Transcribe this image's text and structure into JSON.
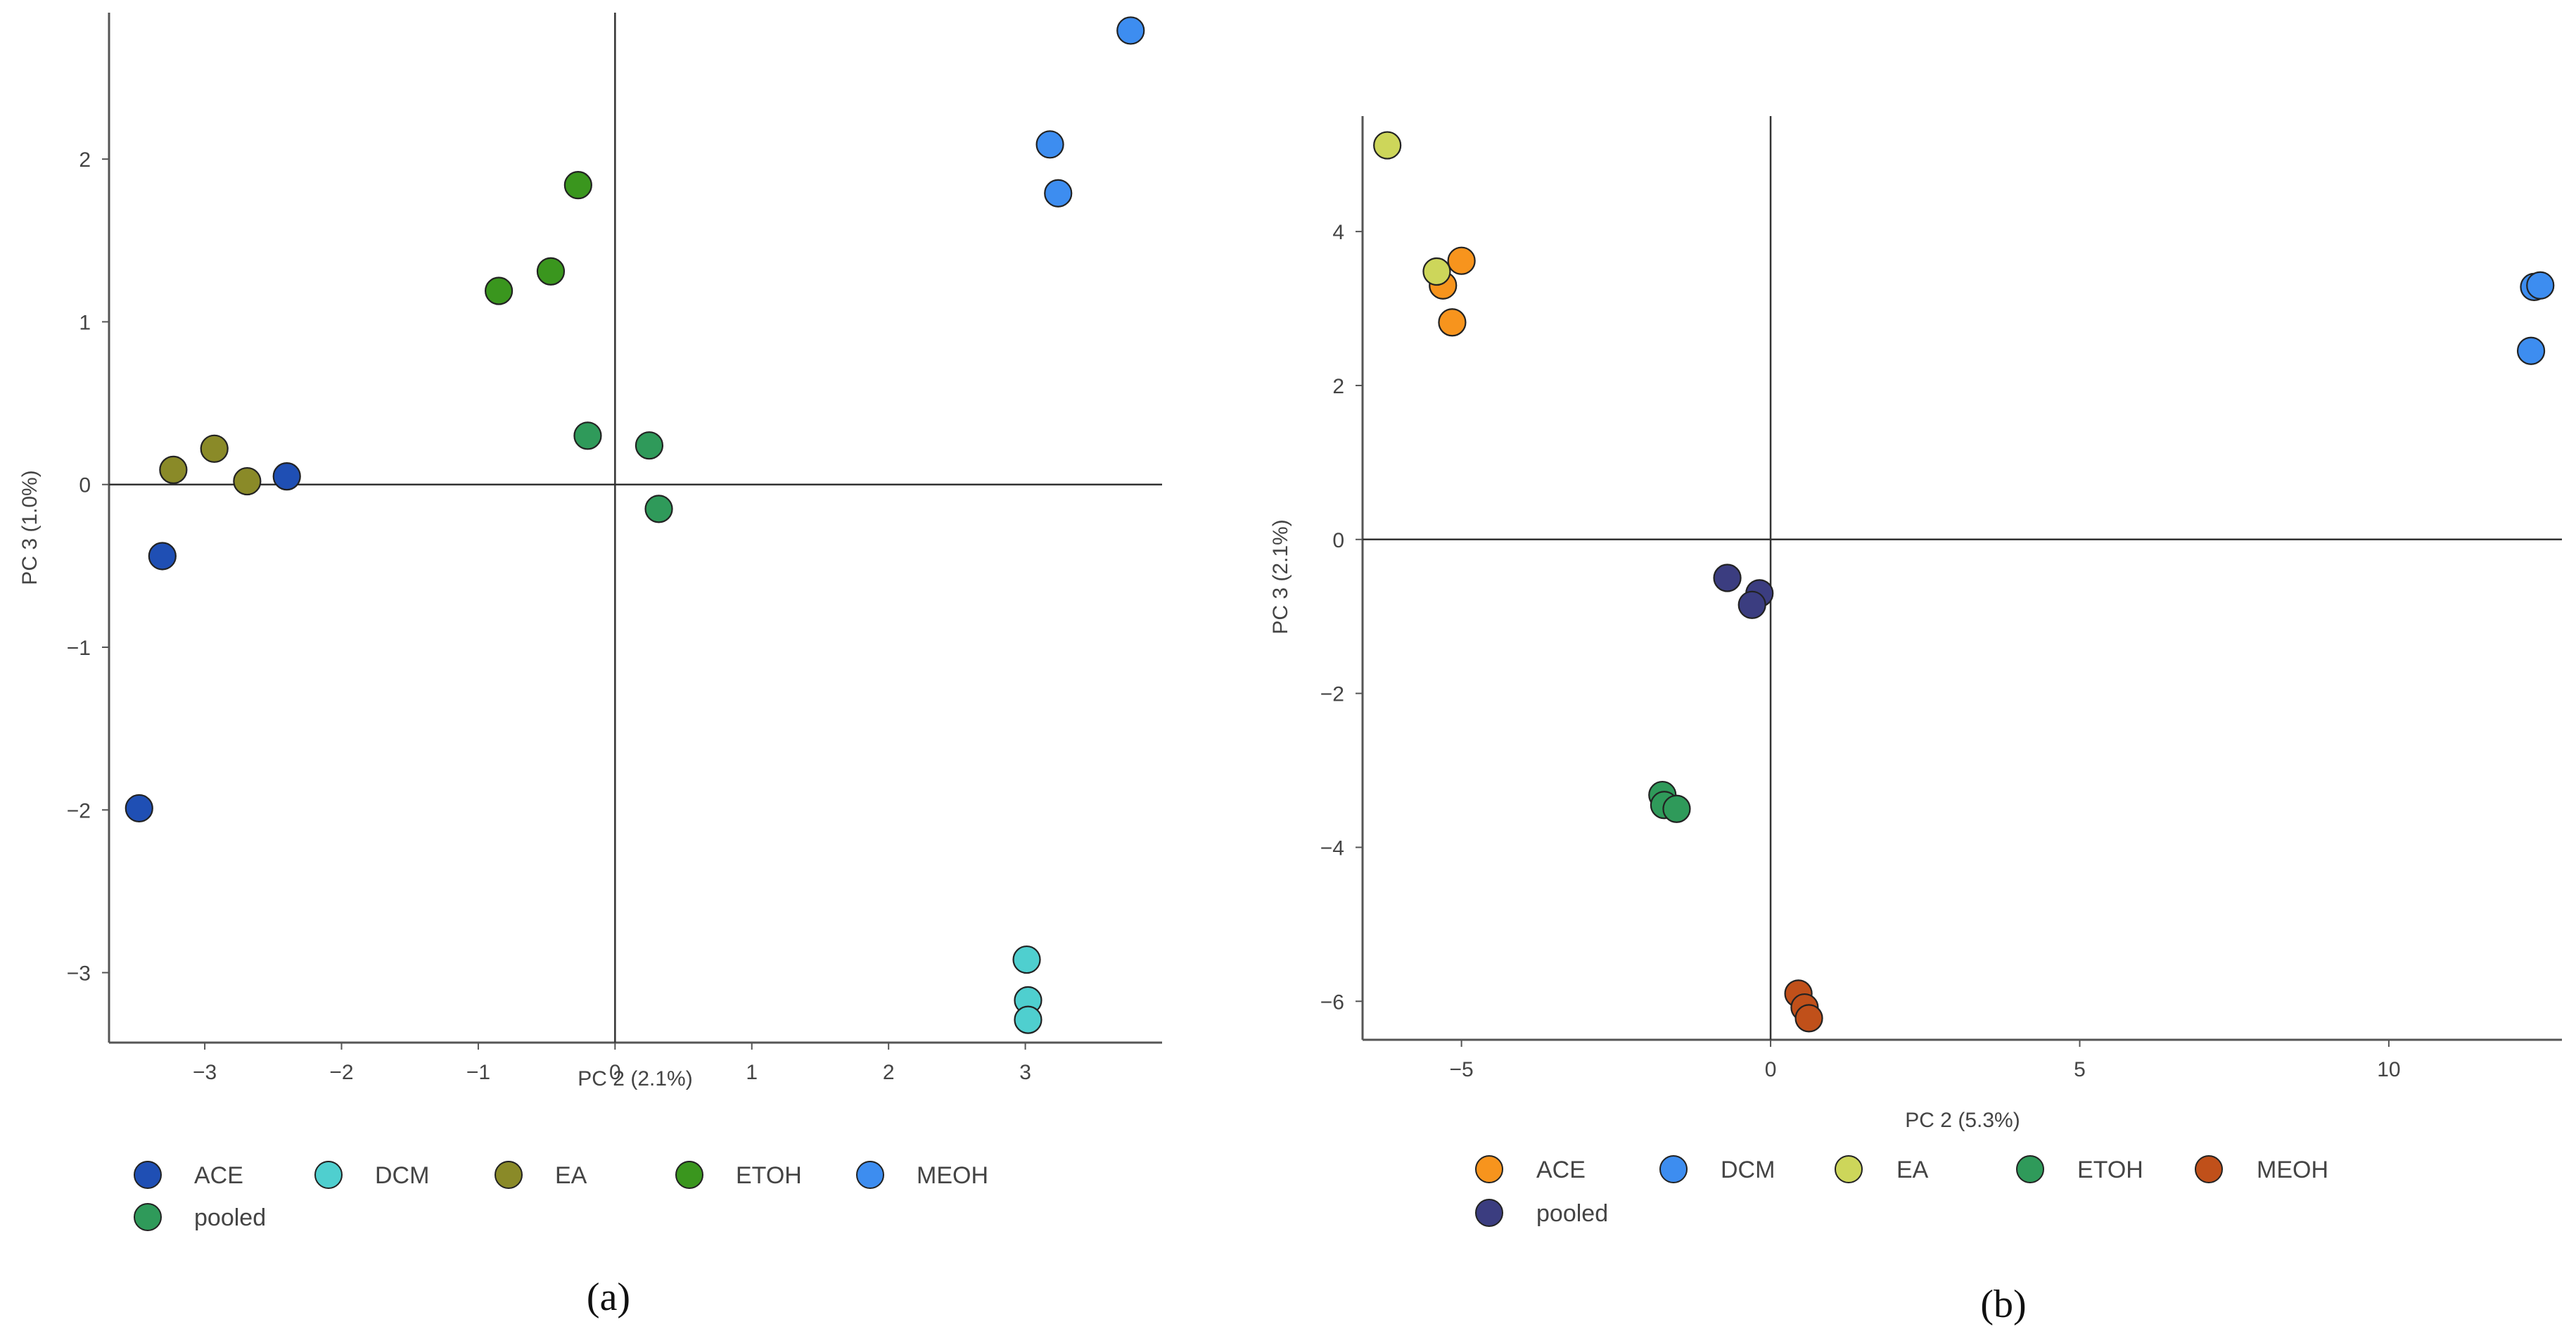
{
  "chart_data": [
    {
      "type": "scatter",
      "caption": "(a)",
      "xlabel": "PC 2 (2.1%)",
      "ylabel": "PC 3 (1.0%)",
      "xlim": [
        -3.7,
        4.0
      ],
      "ylim": [
        -3.43,
        2.9
      ],
      "xticks": [
        -3,
        -2,
        -1,
        0,
        1,
        2,
        3
      ],
      "yticks": [
        -3,
        -2,
        -1,
        0,
        1,
        2
      ],
      "series": [
        {
          "name": "ACE",
          "color": "#1f4fb4",
          "points": [
            [
              -3.48,
              -1.99
            ],
            [
              -3.31,
              -0.44
            ],
            [
              -2.4,
              0.05
            ]
          ]
        },
        {
          "name": "DCM",
          "color": "#4fcfcf",
          "points": [
            [
              3.01,
              -2.92
            ],
            [
              3.02,
              -3.17
            ],
            [
              3.02,
              -3.29
            ]
          ]
        },
        {
          "name": "EA",
          "color": "#8a8a28",
          "points": [
            [
              -3.23,
              0.09
            ],
            [
              -2.93,
              0.22
            ],
            [
              -2.69,
              0.02
            ]
          ]
        },
        {
          "name": "ETOH",
          "color": "#3a961e",
          "points": [
            [
              -0.85,
              1.19
            ],
            [
              -0.47,
              1.31
            ],
            [
              -0.27,
              1.84
            ]
          ]
        },
        {
          "name": "MEOH",
          "color": "#3d8df0",
          "points": [
            [
              3.18,
              2.09
            ],
            [
              3.24,
              1.79
            ],
            [
              3.77,
              2.79
            ]
          ]
        },
        {
          "name": "pooled",
          "color": "#2f9a5a",
          "points": [
            [
              -0.2,
              0.3
            ],
            [
              0.25,
              0.24
            ],
            [
              0.32,
              -0.15
            ]
          ]
        }
      ]
    },
    {
      "type": "scatter",
      "caption": "(b)",
      "xlabel": "PC 2 (5.3%)",
      "ylabel": "PC 3 (2.1%)",
      "xlim": [
        -6.6,
        12.8
      ],
      "ylim": [
        -6.5,
        5.5
      ],
      "xticks": [
        -5,
        0,
        5,
        10
      ],
      "yticks": [
        -6,
        -4,
        -2,
        0,
        2,
        4
      ],
      "series": [
        {
          "name": "ACE",
          "color": "#f7941d",
          "points": [
            [
              -5.0,
              3.62
            ],
            [
              -5.3,
              3.3
            ],
            [
              -5.15,
              2.82
            ]
          ]
        },
        {
          "name": "DCM",
          "color": "#3d8df0",
          "points": [
            [
              12.35,
              3.28
            ],
            [
              12.45,
              3.3
            ],
            [
              12.3,
              2.45
            ]
          ]
        },
        {
          "name": "EA",
          "color": "#cdd65a",
          "points": [
            [
              -6.2,
              5.12
            ],
            [
              -5.4,
              3.48
            ]
          ]
        },
        {
          "name": "ETOH",
          "color": "#2f9a5a",
          "points": [
            [
              -1.75,
              -3.32
            ],
            [
              -1.72,
              -3.45
            ],
            [
              -1.52,
              -3.5
            ]
          ]
        },
        {
          "name": "MEOH",
          "color": "#c0501a",
          "points": [
            [
              0.45,
              -5.9
            ],
            [
              0.55,
              -6.08
            ],
            [
              0.62,
              -6.22
            ]
          ]
        },
        {
          "name": "pooled",
          "color": "#3b3d80",
          "points": [
            [
              -0.7,
              -0.5
            ],
            [
              -0.18,
              -0.7
            ],
            [
              -0.3,
              -0.85
            ]
          ]
        }
      ]
    }
  ]
}
